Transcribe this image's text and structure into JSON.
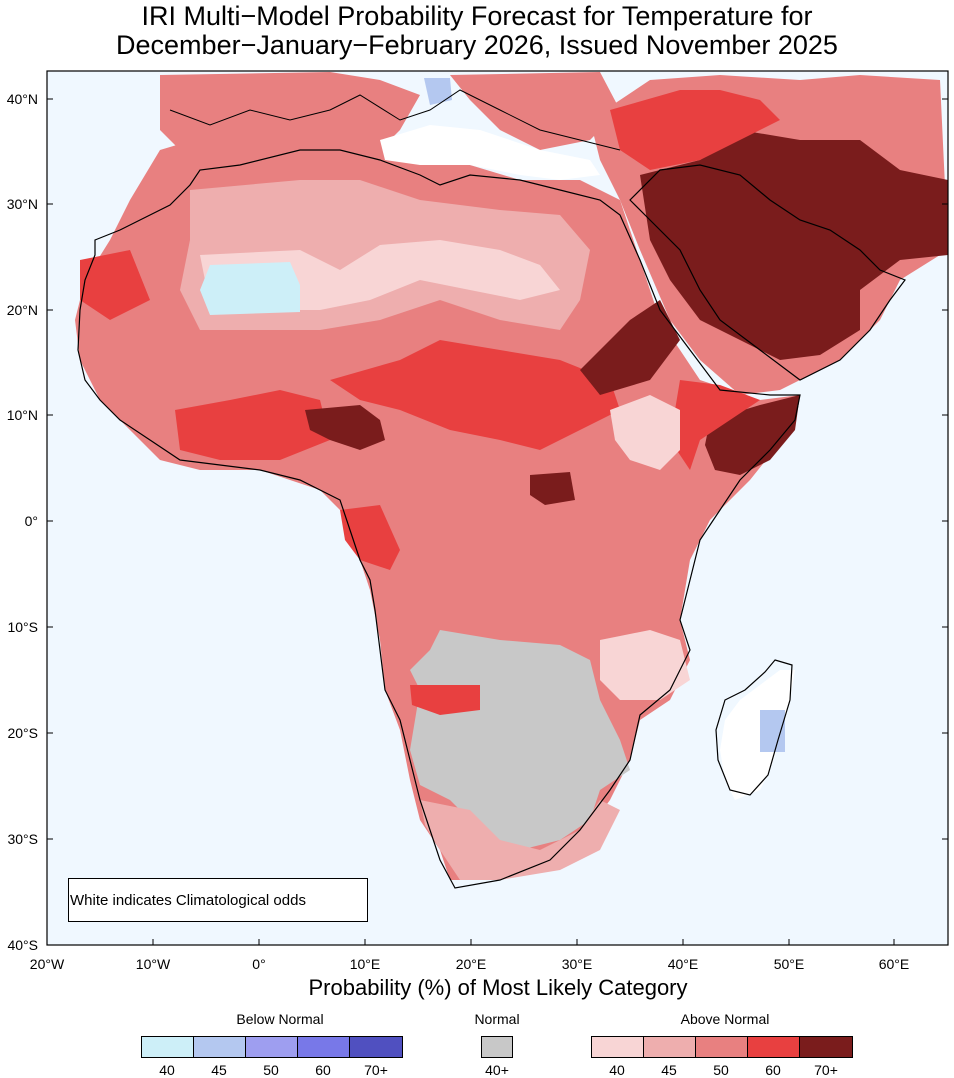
{
  "title": {
    "line1": "IRI Multi−Model Probability Forecast for Temperature for",
    "line2": "December−January−February 2026, Issued November 2025"
  },
  "map": {
    "lat_labels": [
      "40°N",
      "30°N",
      "20°N",
      "10°N",
      "0°",
      "10°S",
      "20°S",
      "30°S",
      "40°S"
    ],
    "lon_labels": [
      "20°W",
      "10°W",
      "0°",
      "10°E",
      "20°E",
      "30°E",
      "40°E",
      "50°E",
      "60°E"
    ],
    "ocean_color": "#f0f8ff",
    "note": "White indicates Climatological odds"
  },
  "legend": {
    "title": "Probability (%) of Most Likely Category",
    "groups": [
      {
        "name": "Below Normal",
        "colors": [
          "#cdeff8",
          "#b4c8f0",
          "#9e9ef0",
          "#7878e8",
          "#5050c0"
        ],
        "ticks": [
          "40",
          "45",
          "50",
          "60",
          "70+"
        ]
      },
      {
        "name": "Normal",
        "colors": [
          "#c8c8c8"
        ],
        "ticks": [
          "40+"
        ]
      },
      {
        "name": "Above Normal",
        "colors": [
          "#f8d5d5",
          "#eeaeae",
          "#e88080",
          "#e84040",
          "#7a1c1c"
        ],
        "ticks": [
          "40",
          "45",
          "50",
          "60",
          "70+"
        ]
      }
    ]
  }
}
